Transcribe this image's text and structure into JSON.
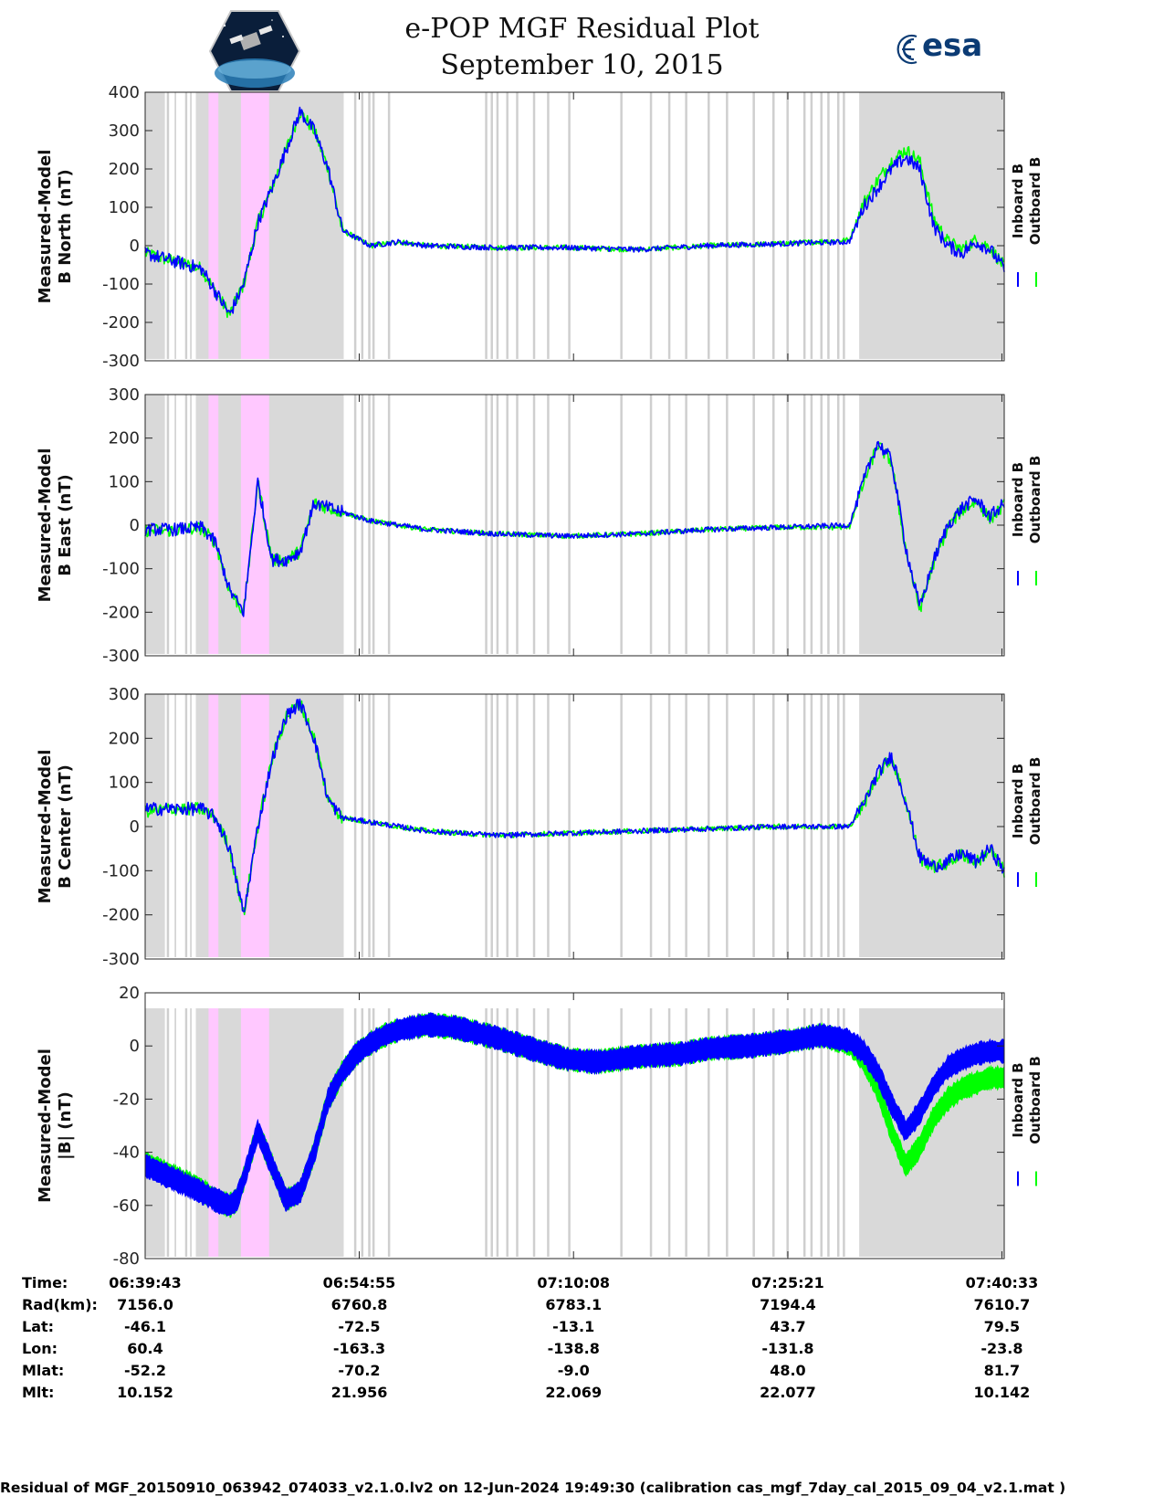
{
  "title_line1": "e-POP MGF Residual Plot",
  "title_line2": "September 10, 2015",
  "logos": {
    "left": "cassiope-satellite-logo",
    "right_text": "esa"
  },
  "colors": {
    "inboard": "#0000ff",
    "outboard": "#00ff00",
    "shade": "#d9d9d9",
    "pink": "#ffc8ff",
    "gap_lines": "#cfcfcf"
  },
  "legend": {
    "inboard": "Inboard B",
    "outboard": "Outboard B"
  },
  "chart_data": [
    {
      "type": "line",
      "id": "north",
      "ylabel_line1": "Measured-Model",
      "ylabel_line2": "B North (nT)",
      "ylim": [
        -300,
        400
      ],
      "yticks": [
        "400",
        "300",
        "200",
        "100",
        "0",
        "-100",
        "-200",
        "-300"
      ],
      "ytick_values": [
        400,
        300,
        200,
        100,
        0,
        -100,
        -200,
        -300
      ],
      "x_minutes": [
        0,
        2,
        4,
        5,
        6,
        7,
        8,
        9,
        10,
        11,
        12,
        13,
        14,
        16,
        18,
        20,
        25,
        30,
        35,
        40,
        45,
        50,
        51,
        52,
        53,
        54,
        55,
        56,
        57,
        58,
        59,
        60,
        61
      ],
      "series": [
        {
          "name": "Inboard B",
          "values": [
            -20,
            -40,
            -60,
            -120,
            -180,
            -100,
            60,
            150,
            250,
            350,
            300,
            200,
            40,
            0,
            10,
            0,
            -5,
            -5,
            -10,
            0,
            5,
            10,
            100,
            150,
            200,
            230,
            200,
            50,
            0,
            -20,
            10,
            -10,
            -60
          ]
        },
        {
          "name": "Outboard B",
          "values": [
            -20,
            -40,
            -60,
            -120,
            -180,
            -100,
            60,
            150,
            250,
            350,
            300,
            200,
            40,
            0,
            10,
            0,
            -5,
            -5,
            -10,
            0,
            5,
            15,
            110,
            170,
            220,
            250,
            220,
            70,
            10,
            -10,
            15,
            -5,
            -55
          ]
        }
      ]
    },
    {
      "type": "line",
      "id": "east",
      "ylabel_line1": "Measured-Model",
      "ylabel_line2": "B East (nT)",
      "ylim": [
        -300,
        300
      ],
      "yticks": [
        "300",
        "200",
        "100",
        "0",
        "-100",
        "-200",
        "-300"
      ],
      "ytick_values": [
        300,
        200,
        100,
        0,
        -100,
        -200,
        -300
      ],
      "x_minutes": [
        0,
        2,
        4,
        5,
        6,
        7,
        8,
        9,
        10,
        11,
        12,
        13,
        14,
        16,
        20,
        25,
        30,
        35,
        40,
        45,
        50,
        51,
        52,
        53,
        54,
        55,
        56,
        57,
        58,
        59,
        60,
        61
      ],
      "series": [
        {
          "name": "Inboard B",
          "values": [
            -10,
            -10,
            -5,
            -40,
            -150,
            -200,
            100,
            -80,
            -80,
            -60,
            50,
            40,
            30,
            10,
            -10,
            -20,
            -25,
            -20,
            -10,
            -5,
            0,
            100,
            190,
            150,
            -50,
            -190,
            -80,
            0,
            40,
            60,
            20,
            50
          ]
        },
        {
          "name": "Outboard B",
          "values": [
            -12,
            -12,
            -7,
            -40,
            -150,
            -200,
            100,
            -80,
            -80,
            -60,
            50,
            40,
            30,
            10,
            -10,
            -20,
            -25,
            -20,
            -10,
            -5,
            -5,
            95,
            185,
            145,
            -55,
            -195,
            -85,
            -5,
            35,
            55,
            15,
            45
          ]
        }
      ]
    },
    {
      "type": "line",
      "id": "center",
      "ylabel_line1": "Measured-Model",
      "ylabel_line2": "B Center (nT)",
      "ylim": [
        -300,
        300
      ],
      "yticks": [
        "300",
        "200",
        "100",
        "0",
        "-100",
        "-200",
        "-300"
      ],
      "ytick_values": [
        300,
        200,
        100,
        0,
        -100,
        -200,
        -300
      ],
      "x_minutes": [
        0,
        2,
        4,
        5,
        6,
        7,
        8,
        9,
        10,
        11,
        12,
        13,
        14,
        16,
        20,
        25,
        30,
        35,
        40,
        45,
        50,
        51,
        52,
        53,
        54,
        55,
        56,
        57,
        58,
        59,
        60,
        61
      ],
      "series": [
        {
          "name": "Inboard B",
          "values": [
            40,
            40,
            40,
            20,
            -50,
            -200,
            0,
            150,
            250,
            280,
            200,
            60,
            20,
            10,
            -10,
            -20,
            -15,
            -10,
            -5,
            0,
            0,
            50,
            120,
            160,
            60,
            -70,
            -90,
            -80,
            -60,
            -80,
            -50,
            -100
          ]
        },
        {
          "name": "Outboard B",
          "values": [
            35,
            40,
            40,
            20,
            -50,
            -200,
            0,
            150,
            250,
            280,
            200,
            60,
            20,
            10,
            -10,
            -20,
            -15,
            -10,
            -5,
            0,
            0,
            48,
            118,
            158,
            58,
            -72,
            -92,
            -82,
            -62,
            -82,
            -52,
            -102
          ]
        }
      ]
    },
    {
      "type": "area",
      "id": "total",
      "ylabel_line1": "Measured-Model",
      "ylabel_line2": "|B| (nT)",
      "ylim": [
        -80,
        20
      ],
      "yticks": [
        "20",
        "0",
        "-20",
        "-40",
        "-60",
        "-80"
      ],
      "ytick_values": [
        20,
        0,
        -20,
        -40,
        -60,
        -80
      ],
      "x_minutes": [
        0,
        2,
        4,
        5,
        6,
        6.5,
        7,
        8,
        9,
        10,
        11,
        12,
        13,
        14,
        15,
        16,
        17,
        18,
        20,
        22,
        25,
        28,
        30,
        32,
        35,
        38,
        40,
        43,
        46,
        48,
        50,
        51,
        52,
        53,
        54,
        55,
        56,
        57,
        58,
        59,
        60,
        61
      ],
      "series": [
        {
          "name": "Inboard B",
          "values": [
            -45,
            -50,
            -55,
            -58,
            -60,
            -58,
            -50,
            -32,
            -45,
            -58,
            -55,
            -40,
            -20,
            -10,
            -3,
            1,
            4,
            6,
            8,
            7,
            3,
            -2,
            -5,
            -6,
            -4,
            -3,
            -1,
            0,
            2,
            4,
            2,
            -2,
            -10,
            -22,
            -32,
            -25,
            -15,
            -8,
            -5,
            -3,
            -2,
            -2
          ]
        },
        {
          "name": "Outboard B",
          "values": [
            -44,
            -49,
            -54,
            -58,
            -60,
            -58,
            -50,
            -32,
            -45,
            -58,
            -55,
            -40,
            -20,
            -10,
            -3,
            1,
            4,
            6,
            8,
            7,
            3,
            -2,
            -5,
            -6,
            -4,
            -3,
            -1,
            0,
            2,
            4,
            1,
            -5,
            -16,
            -32,
            -45,
            -38,
            -27,
            -20,
            -16,
            -14,
            -12,
            -12
          ]
        }
      ],
      "band_halfwidth_nT": 4
    }
  ],
  "x_axis": {
    "xlim_minutes": [
      0,
      61
    ],
    "tick_minutes": [
      0,
      15.2,
      30.4167,
      45.6333,
      60.8333
    ],
    "data_rows": [
      {
        "label": "Time:",
        "values": [
          "06:39:43",
          "06:54:55",
          "07:10:08",
          "07:25:21",
          "07:40:33"
        ]
      },
      {
        "label": "Rad(km):",
        "values": [
          "7156.0",
          "6760.8",
          "6783.1",
          "7194.4",
          "7610.7"
        ]
      },
      {
        "label": "Lat:",
        "values": [
          "-46.1",
          "-72.5",
          "-13.1",
          "43.7",
          "79.5"
        ]
      },
      {
        "label": "Lon:",
        "values": [
          "60.4",
          "-163.3",
          "-138.8",
          "-131.8",
          "-23.8"
        ]
      },
      {
        "label": "Mlat:",
        "values": [
          "-52.2",
          "-70.2",
          "-9.0",
          "48.0",
          "81.7"
        ]
      },
      {
        "label": "Mlt:",
        "values": [
          "10.152",
          "21.956",
          "22.069",
          "22.077",
          "10.142"
        ]
      }
    ]
  },
  "shading_minutes": {
    "gray_blocks": [
      [
        0,
        1.4
      ],
      [
        3.6,
        14.1
      ],
      [
        50.7,
        61
      ]
    ],
    "pink_blocks": [
      [
        4.5,
        5.2
      ],
      [
        6.8,
        8.8
      ]
    ],
    "gray_lines": [
      1.6,
      2.1,
      2.9,
      3.2,
      14.9,
      15.4,
      15.9,
      16.2,
      17.3,
      24.2,
      24.6,
      25.0,
      25.7,
      26.4,
      27.6,
      28.6,
      30.1,
      33.8,
      35.9,
      37.2,
      38.4,
      40.0,
      41.3,
      43.2,
      44.6,
      45.6,
      46.8,
      47.3,
      48.0,
      48.5,
      49.2,
      49.6
    ]
  },
  "footer": "Residual of MGF_20150910_063942_074033_v2.1.0.lv2 on 12-Jun-2024 19:49:30 (calibration cas_mgf_7day_cal_2015_09_04_v2.1.mat )"
}
